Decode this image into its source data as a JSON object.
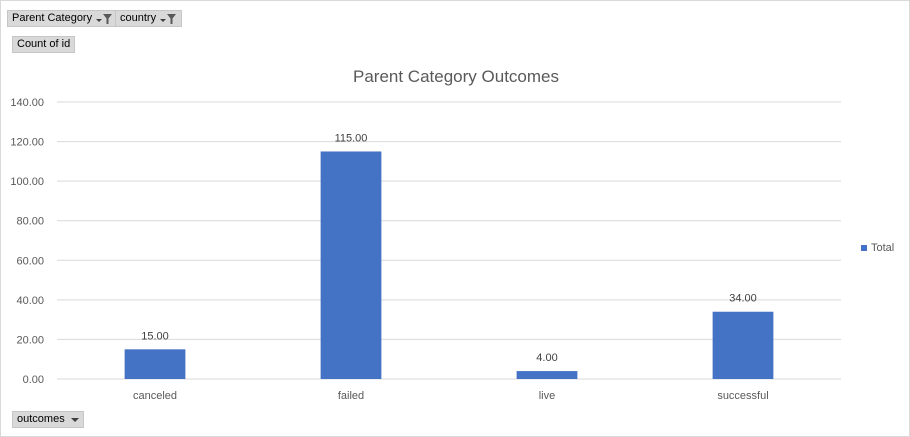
{
  "pivot_fields": {
    "filters": [
      {
        "label": "Parent Category",
        "icon": "filter-dropdown-icon"
      },
      {
        "label": "country",
        "icon": "filter-dropdown-icon"
      }
    ],
    "values_label": "Count of id",
    "axis_field": {
      "label": "outcomes",
      "icon": "chevron-down-icon"
    }
  },
  "colors": {
    "bar": "#4472c4",
    "grid": "#d9d9d9",
    "axis_text": "#595959",
    "title": "#595959"
  },
  "chart_data": {
    "type": "bar",
    "title": "Parent Category Outcomes",
    "categories": [
      "canceled",
      "failed",
      "live",
      "successful"
    ],
    "series": [
      {
        "name": "Total",
        "values": [
          15,
          115,
          4,
          34
        ]
      }
    ],
    "data_labels": [
      "15.00",
      "115.00",
      "4.00",
      "34.00"
    ],
    "y_ticks": [
      "0.00",
      "20.00",
      "40.00",
      "60.00",
      "80.00",
      "100.00",
      "120.00",
      "140.00"
    ],
    "ylim": [
      0,
      140
    ],
    "grid": true,
    "legend_position": "right"
  }
}
